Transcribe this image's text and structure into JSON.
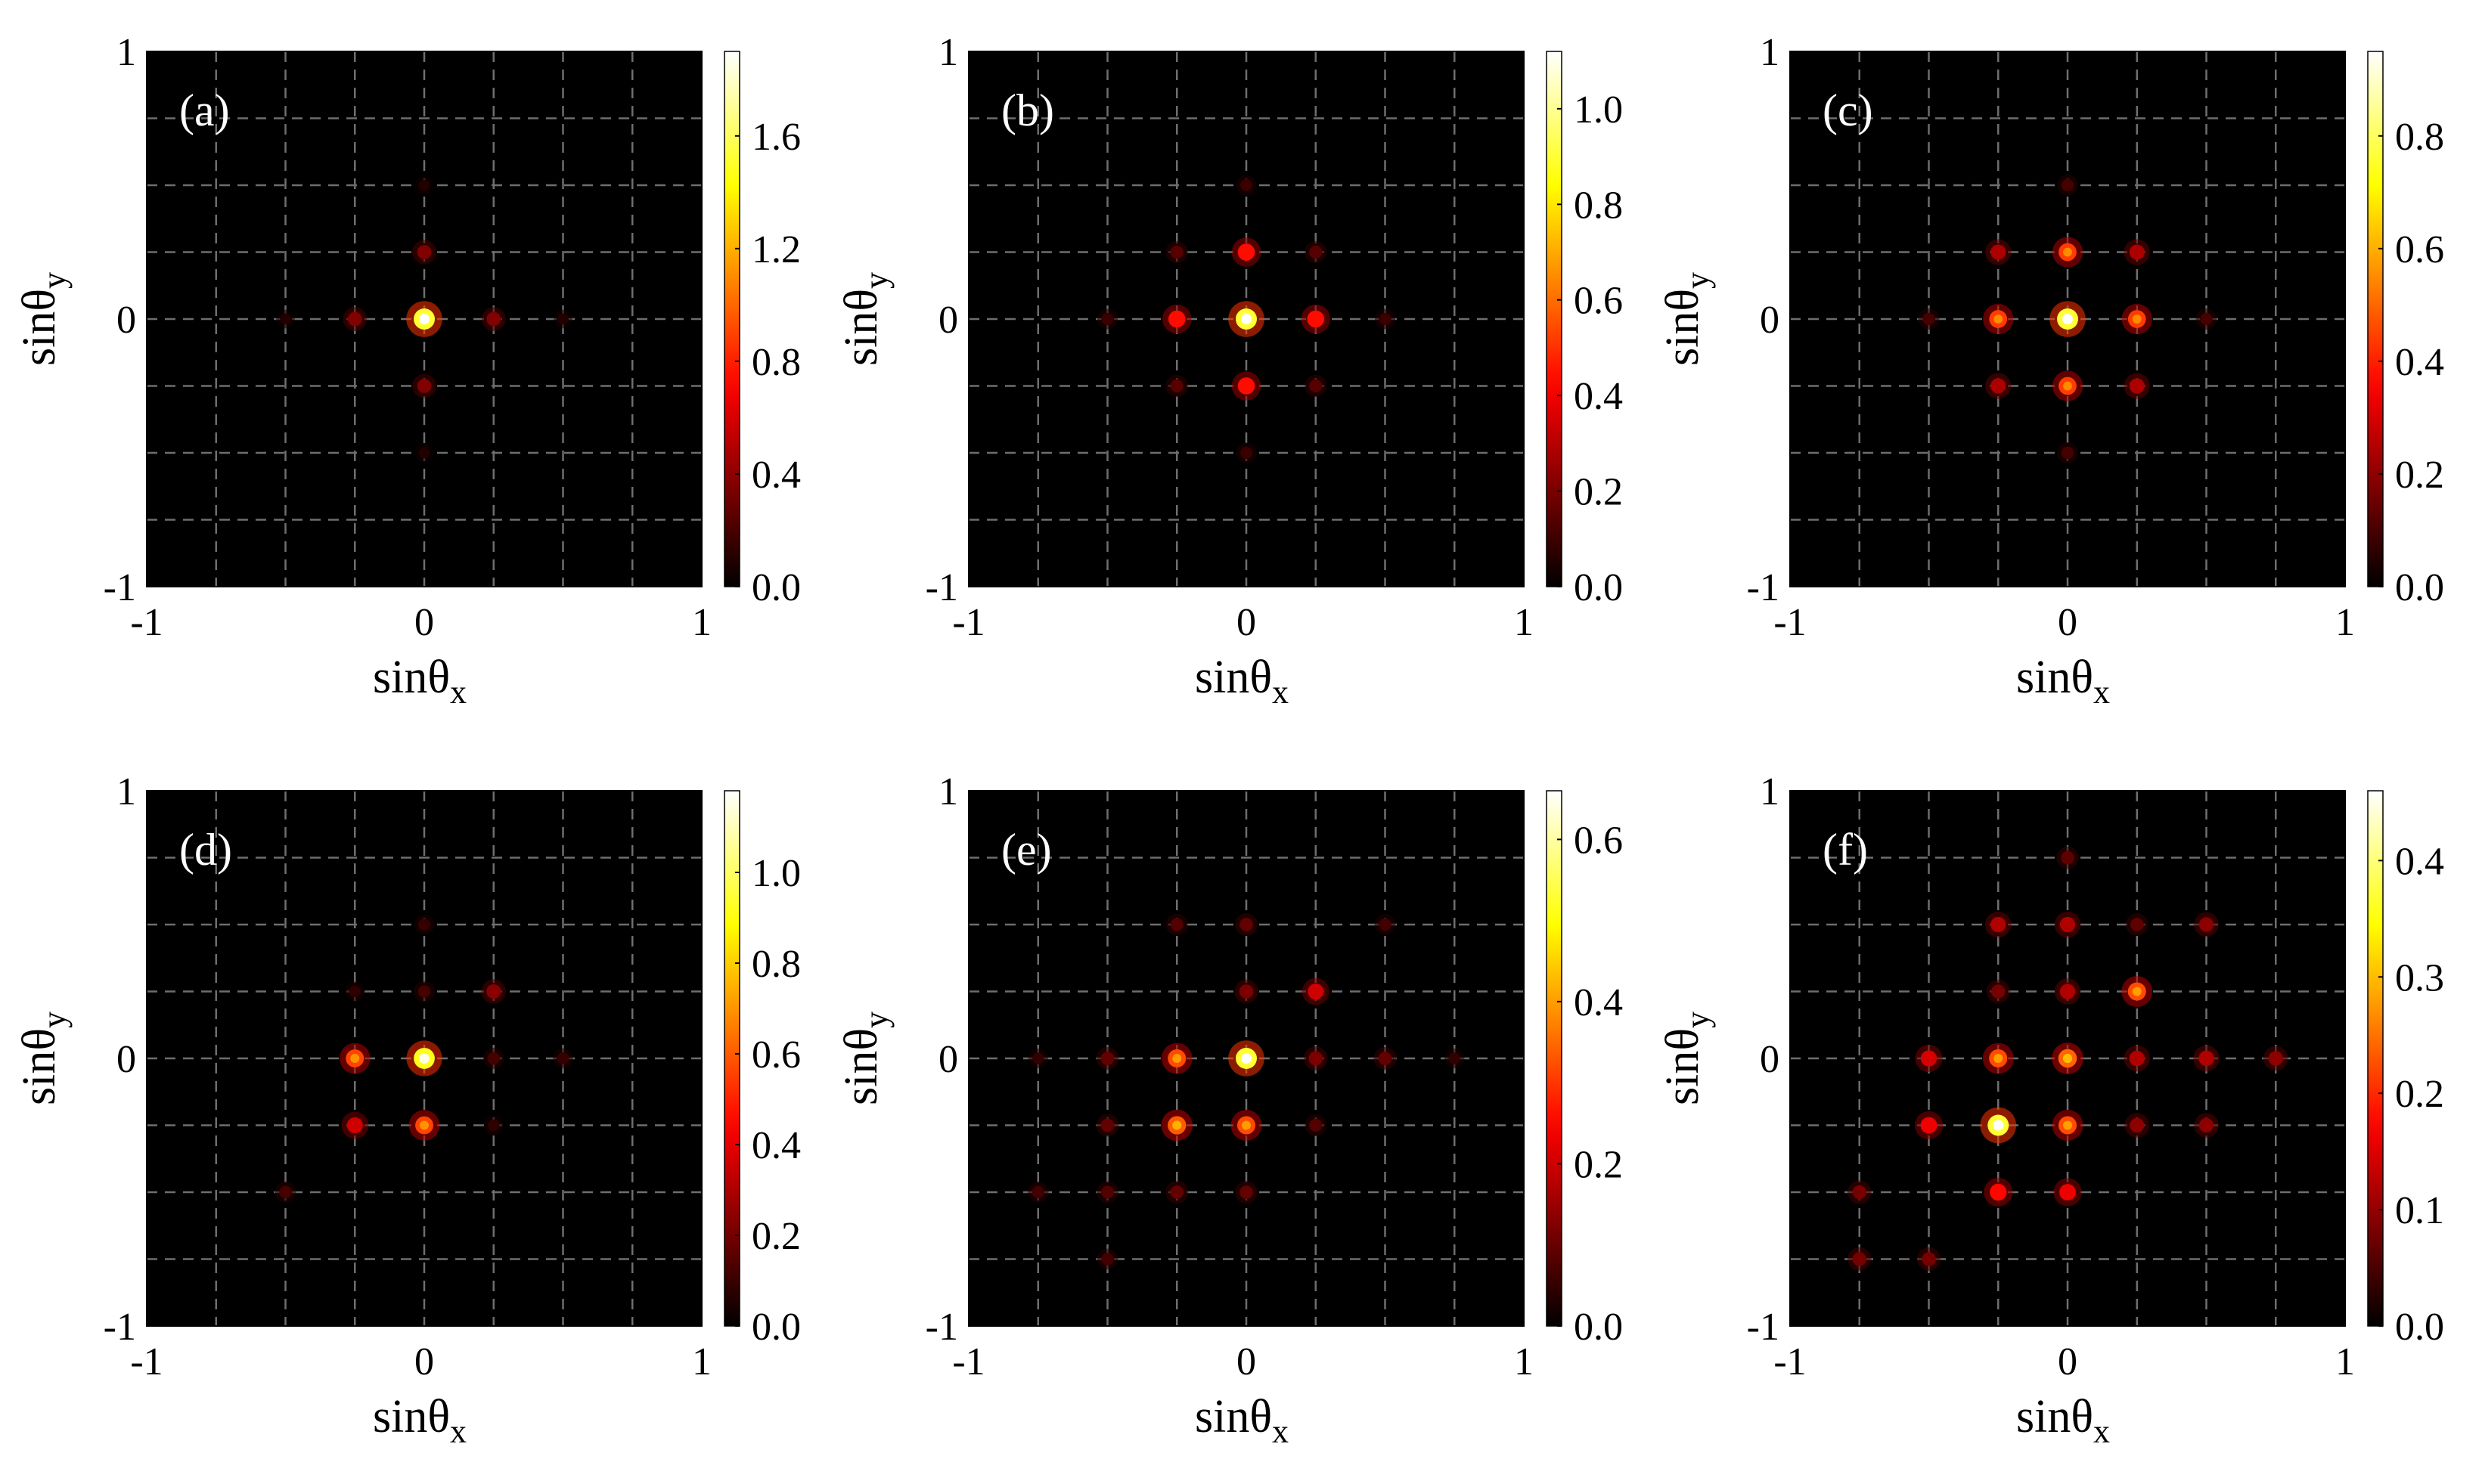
{
  "figure": {
    "xlabel_main": "sinθ",
    "xlabel_sub": "x",
    "ylabel_main": "sinθ",
    "ylabel_sub": "y",
    "colormap": "hot",
    "grid_style": "dashed",
    "grid_values": [
      -0.75,
      -0.5,
      -0.25,
      0,
      0.25,
      0.5,
      0.75
    ],
    "grid_color": "#6e6e6e",
    "background_color": "#000000"
  },
  "chart_data": [
    {
      "type": "heatmap",
      "label": "(a)",
      "xlim": [
        -1,
        1
      ],
      "ylim": [
        -1,
        1
      ],
      "xticks": [
        "-1",
        "0",
        "1"
      ],
      "yticks": [
        "-1",
        "0",
        "1"
      ],
      "colorbar_range": [
        0,
        1.9
      ],
      "colorbar_ticks": [
        "0.0",
        "0.4",
        "0.8",
        "1.2",
        "1.6"
      ],
      "spots": [
        {
          "x": 0,
          "y": 0,
          "v": 1.9
        },
        {
          "x": -0.25,
          "y": 0,
          "v": 0.45
        },
        {
          "x": 0.25,
          "y": 0,
          "v": 0.45
        },
        {
          "x": 0,
          "y": 0.25,
          "v": 0.45
        },
        {
          "x": 0,
          "y": -0.25,
          "v": 0.45
        },
        {
          "x": -0.5,
          "y": 0,
          "v": 0.12
        },
        {
          "x": 0.5,
          "y": 0,
          "v": 0.12
        },
        {
          "x": 0,
          "y": 0.5,
          "v": 0.12
        },
        {
          "x": 0,
          "y": -0.5,
          "v": 0.12
        }
      ]
    },
    {
      "type": "heatmap",
      "label": "(b)",
      "xlim": [
        -1,
        1
      ],
      "ylim": [
        -1,
        1
      ],
      "xticks": [
        "-1",
        "0",
        "1"
      ],
      "yticks": [
        "-1",
        "0",
        "1"
      ],
      "colorbar_range": [
        0,
        1.12
      ],
      "colorbar_ticks": [
        "0.0",
        "0.2",
        "0.4",
        "0.6",
        "0.8",
        "1.0"
      ],
      "spots": [
        {
          "x": 0,
          "y": 0,
          "v": 1.12
        },
        {
          "x": -0.25,
          "y": 0,
          "v": 0.55
        },
        {
          "x": 0.25,
          "y": 0,
          "v": 0.55
        },
        {
          "x": 0,
          "y": 0.25,
          "v": 0.55
        },
        {
          "x": 0,
          "y": -0.25,
          "v": 0.55
        },
        {
          "x": -0.25,
          "y": 0.25,
          "v": 0.18
        },
        {
          "x": 0.25,
          "y": 0.25,
          "v": 0.18
        },
        {
          "x": -0.25,
          "y": -0.25,
          "v": 0.18
        },
        {
          "x": 0.25,
          "y": -0.25,
          "v": 0.18
        },
        {
          "x": -0.5,
          "y": 0,
          "v": 0.12
        },
        {
          "x": 0.5,
          "y": 0,
          "v": 0.12
        },
        {
          "x": 0,
          "y": 0.5,
          "v": 0.12
        },
        {
          "x": 0,
          "y": -0.5,
          "v": 0.12
        }
      ]
    },
    {
      "type": "heatmap",
      "label": "(c)",
      "xlim": [
        -1,
        1
      ],
      "ylim": [
        -1,
        1
      ],
      "xticks": [
        "-1",
        "0",
        "1"
      ],
      "yticks": [
        "-1",
        "0",
        "1"
      ],
      "colorbar_range": [
        0,
        0.95
      ],
      "colorbar_ticks": [
        "0.0",
        "0.2",
        "0.4",
        "0.6",
        "0.8"
      ],
      "spots": [
        {
          "x": 0,
          "y": 0,
          "v": 0.95
        },
        {
          "x": -0.25,
          "y": 0,
          "v": 0.55
        },
        {
          "x": 0.25,
          "y": 0,
          "v": 0.55
        },
        {
          "x": 0,
          "y": 0.25,
          "v": 0.55
        },
        {
          "x": 0,
          "y": -0.25,
          "v": 0.55
        },
        {
          "x": -0.25,
          "y": 0.25,
          "v": 0.3
        },
        {
          "x": 0.25,
          "y": 0.25,
          "v": 0.3
        },
        {
          "x": -0.25,
          "y": -0.25,
          "v": 0.3
        },
        {
          "x": 0.25,
          "y": -0.25,
          "v": 0.3
        },
        {
          "x": -0.5,
          "y": 0,
          "v": 0.12
        },
        {
          "x": 0.5,
          "y": 0,
          "v": 0.12
        },
        {
          "x": 0,
          "y": 0.5,
          "v": 0.12
        },
        {
          "x": 0,
          "y": -0.5,
          "v": 0.12
        }
      ]
    },
    {
      "type": "heatmap",
      "label": "(d)",
      "xlim": [
        -1,
        1
      ],
      "ylim": [
        -1,
        1
      ],
      "xticks": [
        "-1",
        "0",
        "1"
      ],
      "yticks": [
        "-1",
        "0",
        "1"
      ],
      "colorbar_range": [
        0,
        1.18
      ],
      "colorbar_ticks": [
        "0.0",
        "0.2",
        "0.4",
        "0.6",
        "0.8",
        "1.0"
      ],
      "spots": [
        {
          "x": 0,
          "y": 0,
          "v": 1.15
        },
        {
          "x": -0.25,
          "y": 0,
          "v": 0.7
        },
        {
          "x": 0,
          "y": -0.25,
          "v": 0.7
        },
        {
          "x": -0.25,
          "y": -0.25,
          "v": 0.45
        },
        {
          "x": 0.25,
          "y": 0.25,
          "v": 0.3
        },
        {
          "x": 0,
          "y": 0.25,
          "v": 0.15
        },
        {
          "x": 0,
          "y": 0.5,
          "v": 0.12
        },
        {
          "x": 0.25,
          "y": 0,
          "v": 0.15
        },
        {
          "x": 0.5,
          "y": 0,
          "v": 0.12
        },
        {
          "x": -0.5,
          "y": -0.5,
          "v": 0.15
        },
        {
          "x": 0.25,
          "y": -0.25,
          "v": 0.1
        },
        {
          "x": -0.25,
          "y": 0.25,
          "v": 0.1
        }
      ]
    },
    {
      "type": "heatmap",
      "label": "(e)",
      "xlim": [
        -1,
        1
      ],
      "ylim": [
        -1,
        1
      ],
      "xticks": [
        "-1",
        "0",
        "1"
      ],
      "yticks": [
        "-1",
        "0",
        "1"
      ],
      "colorbar_range": [
        0,
        0.66
      ],
      "colorbar_ticks": [
        "0.0",
        "0.2",
        "0.4",
        "0.6"
      ],
      "spots": [
        {
          "x": 0,
          "y": 0,
          "v": 0.66
        },
        {
          "x": -0.25,
          "y": 0,
          "v": 0.4
        },
        {
          "x": 0,
          "y": -0.25,
          "v": 0.4
        },
        {
          "x": -0.25,
          "y": -0.25,
          "v": 0.42
        },
        {
          "x": 0.25,
          "y": 0.25,
          "v": 0.25
        },
        {
          "x": 0.25,
          "y": 0,
          "v": 0.15
        },
        {
          "x": 0,
          "y": 0.25,
          "v": 0.15
        },
        {
          "x": 0.5,
          "y": 0,
          "v": 0.12
        },
        {
          "x": 0,
          "y": 0.5,
          "v": 0.12
        },
        {
          "x": -0.5,
          "y": 0,
          "v": 0.12
        },
        {
          "x": 0,
          "y": -0.5,
          "v": 0.12
        },
        {
          "x": -0.25,
          "y": 0.5,
          "v": 0.1
        },
        {
          "x": 0.5,
          "y": 0.5,
          "v": 0.08
        },
        {
          "x": -0.5,
          "y": -0.25,
          "v": 0.12
        },
        {
          "x": -0.25,
          "y": -0.5,
          "v": 0.12
        },
        {
          "x": -0.5,
          "y": -0.5,
          "v": 0.1
        },
        {
          "x": 0.25,
          "y": -0.25,
          "v": 0.1
        },
        {
          "x": -0.75,
          "y": -0.5,
          "v": 0.08
        },
        {
          "x": -0.5,
          "y": -0.75,
          "v": 0.08
        },
        {
          "x": -0.75,
          "y": 0,
          "v": 0.06
        },
        {
          "x": 0.75,
          "y": 0,
          "v": 0.06
        }
      ]
    },
    {
      "type": "heatmap",
      "label": "(f)",
      "xlim": [
        -1,
        1
      ],
      "ylim": [
        -1,
        1
      ],
      "xticks": [
        "-1",
        "0",
        "1"
      ],
      "yticks": [
        "-1",
        "0",
        "1"
      ],
      "colorbar_range": [
        0,
        0.46
      ],
      "colorbar_ticks": [
        "0.0",
        "0.1",
        "0.2",
        "0.3",
        "0.4"
      ],
      "spots": [
        {
          "x": -0.25,
          "y": -0.25,
          "v": 0.46
        },
        {
          "x": 0,
          "y": 0,
          "v": 0.3
        },
        {
          "x": -0.25,
          "y": 0,
          "v": 0.28
        },
        {
          "x": 0,
          "y": -0.25,
          "v": 0.28
        },
        {
          "x": 0.25,
          "y": 0.25,
          "v": 0.28
        },
        {
          "x": -0.25,
          "y": -0.5,
          "v": 0.22
        },
        {
          "x": -0.5,
          "y": -0.25,
          "v": 0.2
        },
        {
          "x": 0,
          "y": -0.5,
          "v": 0.2
        },
        {
          "x": -0.5,
          "y": 0,
          "v": 0.18
        },
        {
          "x": -0.25,
          "y": 0.5,
          "v": 0.15
        },
        {
          "x": 0,
          "y": 0.5,
          "v": 0.15
        },
        {
          "x": 0.25,
          "y": 0,
          "v": 0.15
        },
        {
          "x": 0,
          "y": 0.25,
          "v": 0.15
        },
        {
          "x": 0.5,
          "y": 0,
          "v": 0.15
        },
        {
          "x": 0.5,
          "y": 0.5,
          "v": 0.12
        },
        {
          "x": 0.75,
          "y": 0,
          "v": 0.12
        },
        {
          "x": 0.5,
          "y": -0.25,
          "v": 0.12
        },
        {
          "x": 0.25,
          "y": -0.25,
          "v": 0.12
        },
        {
          "x": -0.75,
          "y": -0.5,
          "v": 0.1
        },
        {
          "x": -0.75,
          "y": -0.75,
          "v": 0.1
        },
        {
          "x": -0.5,
          "y": -0.75,
          "v": 0.1
        },
        {
          "x": 0,
          "y": 0.75,
          "v": 0.08
        },
        {
          "x": -0.25,
          "y": 0.25,
          "v": 0.1
        },
        {
          "x": 0.25,
          "y": 0.5,
          "v": 0.08
        }
      ]
    }
  ]
}
